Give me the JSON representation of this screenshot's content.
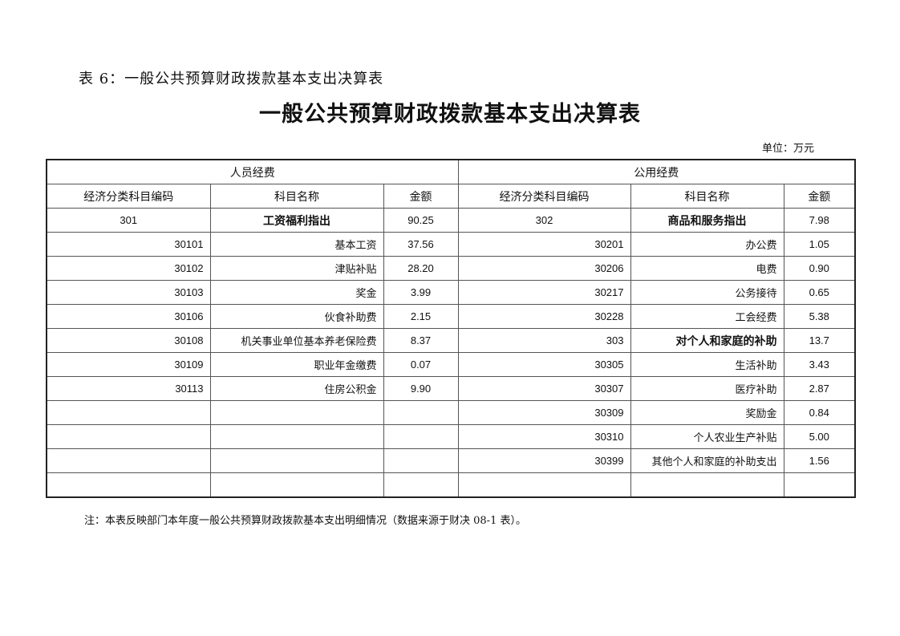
{
  "pre_title": "表 6：一般公共预算财政拨款基本支出决算表",
  "title": "一般公共预算财政拨款基本支出决算表",
  "unit": "单位：万元",
  "groups": {
    "personnel": "人员经费",
    "public": "公用经费"
  },
  "headers": {
    "code": "经济分类科目编码",
    "name": "科目名称",
    "amount": "金额"
  },
  "rows": [
    {
      "lcode": "301",
      "lname": "工资福利指出",
      "lamt": "90.25",
      "rcode": "302",
      "rname": "商品和服务指出",
      "ramt": "7.98"
    },
    {
      "lcode": "30101",
      "lname": "基本工资",
      "lamt": "37.56",
      "rcode": "30201",
      "rname": "办公费",
      "ramt": "1.05"
    },
    {
      "lcode": "30102",
      "lname": "津贴补贴",
      "lamt": "28.20",
      "rcode": "30206",
      "rname": "电费",
      "ramt": "0.90"
    },
    {
      "lcode": "30103",
      "lname": "奖金",
      "lamt": "3.99",
      "rcode": "30217",
      "rname": "公务接待",
      "ramt": "0.65"
    },
    {
      "lcode": "30106",
      "lname": "伙食补助费",
      "lamt": "2.15",
      "rcode": "30228",
      "rname": "工会经费",
      "ramt": "5.38"
    },
    {
      "lcode": "30108",
      "lname": "机关事业单位基本养老保险费",
      "lamt": "8.37",
      "rcode": "303",
      "rname": "对个人和家庭的补助",
      "ramt": "13.7"
    },
    {
      "lcode": "30109",
      "lname": "职业年金缴费",
      "lamt": "0.07",
      "rcode": "30305",
      "rname": "生活补助",
      "ramt": "3.43"
    },
    {
      "lcode": "30113",
      "lname": "住房公积金",
      "lamt": "9.90",
      "rcode": "30307",
      "rname": "医疗补助",
      "ramt": "2.87"
    },
    {
      "lcode": "",
      "lname": "",
      "lamt": "",
      "rcode": "30309",
      "rname": "奖励金",
      "ramt": "0.84"
    },
    {
      "lcode": "",
      "lname": "",
      "lamt": "",
      "rcode": "30310",
      "rname": "个人农业生产补贴",
      "ramt": "5.00"
    },
    {
      "lcode": "",
      "lname": "",
      "lamt": "",
      "rcode": "30399",
      "rname": "其他个人和家庭的补助支出",
      "ramt": "1.56"
    },
    {
      "lcode": "",
      "lname": "",
      "lamt": "",
      "rcode": "",
      "rname": "",
      "ramt": ""
    }
  ],
  "note": "注：本表反映部门本年度一般公共预算财政拨款基本支出明细情况（数据来源于财决 08-1 表）。"
}
